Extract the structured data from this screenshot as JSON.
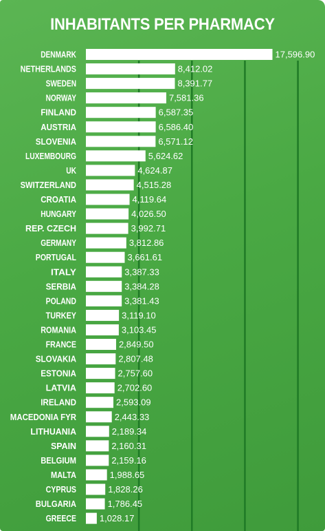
{
  "chart_data": {
    "type": "bar",
    "orientation": "horizontal",
    "title": "INHABITANTS PER PHARMACY",
    "categories": [
      "DENMARK",
      "NETHERLANDS",
      "SWEDEN",
      "NORWAY",
      "FINLAND",
      "AUSTRIA",
      "SLOVENIA",
      "LUXEMBOURG",
      "UK",
      "SWITZERLAND",
      "CROATIA",
      "HUNGARY",
      "REP. CZECH",
      "GERMANY",
      "PORTUGAL",
      "ITALY",
      "SERBIA",
      "POLAND",
      "TURKEY",
      "ROMANIA",
      "FRANCE",
      "SLOVAKIA",
      "ESTONIA",
      "LATVIA",
      "IRELAND",
      "MACEDONIA FYR",
      "LITHUANIA",
      "SPAIN",
      "BELGIUM",
      "MALTA",
      "CYPRUS",
      "BULGARIA",
      "GREECE"
    ],
    "values": [
      17596.9,
      8412.02,
      8391.77,
      7581.36,
      6587.35,
      6586.4,
      6571.12,
      5624.62,
      4624.87,
      4515.28,
      4119.64,
      4026.5,
      3992.71,
      3812.86,
      3661.61,
      3387.33,
      3384.28,
      3381.43,
      3119.1,
      3103.45,
      2849.5,
      2807.48,
      2757.6,
      2702.6,
      2593.09,
      2443.33,
      2189.34,
      2160.31,
      2159.16,
      1988.65,
      1828.26,
      1786.45,
      1028.17
    ],
    "value_labels": [
      "17,596.90",
      "8,412.02",
      "8,391.77",
      "7,581.36",
      "6,587.35",
      "6,586.40",
      "6,571.12",
      "5,624.62",
      "4,624.87",
      "4,515.28",
      "4,119.64",
      "4,026.50",
      "3,992.71",
      "3,812.86",
      "3,661.61",
      "3,387.33",
      "3,384.28",
      "3,381.43",
      "3,119.10",
      "3,103.45",
      "2,849.50",
      "2,807.48",
      "2,757.60",
      "2,702.60",
      "2,593.09",
      "2,443.33",
      "2,189.34",
      "2,160.31",
      "2,159.16",
      "1,988.65",
      "1,828.26",
      "1,786.45",
      "1,028.17"
    ],
    "xlim": [
      0,
      20000
    ],
    "grid_x": [
      5000,
      10000,
      15000,
      20000
    ],
    "grid": true,
    "legend": false
  },
  "colors": {
    "background": "#4aa944",
    "bar": "#ffffff",
    "gridline": "#1f7a26",
    "text": "#ffffff"
  }
}
